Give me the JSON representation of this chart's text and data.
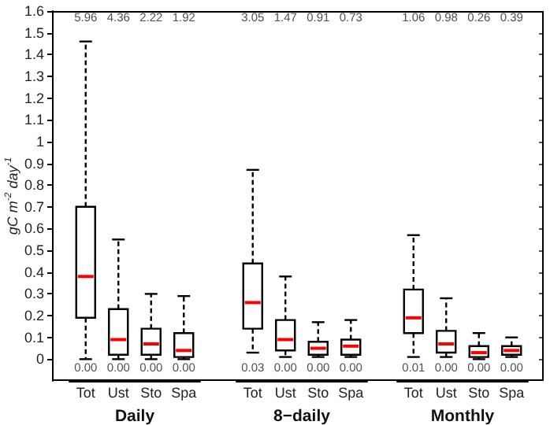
{
  "chart_data": [
    {
      "type": "box",
      "xlabel": "Daily",
      "ylabel": "gC m$^{-2}$ day$^{-1}$",
      "categories": [
        "Tot",
        "Ust",
        "Sto",
        "Spa"
      ],
      "ylim": [
        -0.1,
        1.6
      ],
      "yticks": [
        0,
        0.1,
        0.2,
        0.3,
        0.4,
        0.5,
        0.6,
        0.7,
        0.8,
        0.9,
        1,
        1.1,
        1.2,
        1.3,
        1.4,
        1.5,
        1.6
      ],
      "series": [
        {
          "color": "#000000",
          "boxes": [
            {
              "low": 0,
              "q1": 0.19,
              "median": 0.38,
              "q3": 0.7,
              "high": 1.46
            },
            {
              "low": 0,
              "q1": 0.02,
              "median": 0.09,
              "q3": 0.23,
              "high": 0.55
            },
            {
              "low": 0,
              "q1": 0.02,
              "median": 0.07,
              "q3": 0.14,
              "high": 0.3
            },
            {
              "low": 0,
              "q1": 0.01,
              "median": 0.04,
              "q3": 0.12,
              "high": 0.29
            }
          ]
        }
      ],
      "annotations": [
        "5.96",
        "4.36",
        "2.22",
        "1.92",
        "0.00",
        "0.00",
        "0.00",
        "0.00"
      ]
    },
    {
      "type": "box",
      "xlabel": "8−daily",
      "categories": [
        "Tot",
        "Ust",
        "Sto",
        "Spa"
      ],
      "ylim": [
        -0.1,
        1.6
      ],
      "yticks": [
        0,
        0.1,
        0.2,
        0.3,
        0.4,
        0.5,
        0.6,
        0.7,
        0.8,
        0.9,
        1,
        1.1,
        1.2,
        1.3,
        1.4,
        1.5,
        1.6
      ],
      "tick_labels": "x",
      "series": [
        {
          "color": "#000000",
          "boxes": [
            {
              "low": 0.03,
              "q1": 0.14,
              "median": 0.26,
              "q3": 0.44,
              "high": 0.87
            },
            {
              "low": 0.01,
              "q1": 0.04,
              "median": 0.09,
              "q3": 0.18,
              "high": 0.38
            },
            {
              "low": 0.01,
              "q1": 0.02,
              "median": 0.05,
              "q3": 0.08,
              "high": 0.17
            },
            {
              "low": 0.01,
              "q1": 0.02,
              "median": 0.06,
              "q3": 0.09,
              "high": 0.18
            }
          ]
        }
      ],
      "annotations": [
        "3.05",
        "1.47",
        "0.91",
        "0.73",
        "0.03",
        "0.00",
        "0.00",
        "0.00"
      ]
    },
    {
      "type": "box",
      "xlabel": "Monthly",
      "categories": [
        "Tot",
        "Ust",
        "Sto",
        "Spa"
      ],
      "ylim": [
        -0.1,
        1.6
      ],
      "yticks": [
        0,
        0.1,
        0.2,
        0.3,
        0.4,
        0.5,
        0.6,
        0.7,
        0.8,
        0.9,
        1,
        1.1,
        1.2,
        1.3,
        1.4,
        1.5,
        1.6
      ],
      "tick_labels": "x",
      "series": [
        {
          "color": "#000000",
          "boxes": [
            {
              "low": 0.01,
              "q1": 0.12,
              "median": 0.19,
              "q3": 0.32,
              "high": 0.57
            },
            {
              "low": 0.01,
              "q1": 0.03,
              "median": 0.07,
              "q3": 0.13,
              "high": 0.28
            },
            {
              "low": 0,
              "q1": 0.01,
              "median": 0.03,
              "q3": 0.06,
              "high": 0.12
            },
            {
              "low": 0.01,
              "q1": 0.02,
              "median": 0.04,
              "q3": 0.06,
              "high": 0.1
            }
          ]
        }
      ],
      "annotations": [
        "1.06",
        "0.98",
        "0.26",
        "0.39",
        "0.01",
        "0.00",
        "0.00",
        "0.00"
      ]
    }
  ]
}
